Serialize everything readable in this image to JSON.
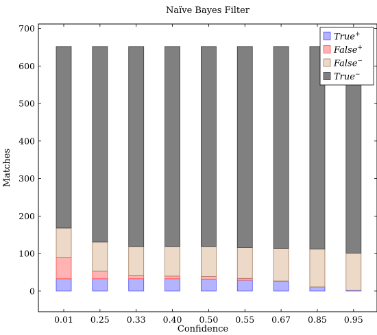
{
  "chart_data": {
    "type": "bar",
    "stacked": true,
    "title": "Naïve Bayes Filter",
    "xlabel": "Confidence",
    "ylabel": "Matches",
    "categories": [
      "0.01",
      "0.25",
      "0.33",
      "0.40",
      "0.50",
      "0.55",
      "0.67",
      "0.85",
      "0.95"
    ],
    "ylim": [
      -55,
      712
    ],
    "yticks": [
      0,
      100,
      200,
      300,
      400,
      500,
      600,
      700
    ],
    "grid": false,
    "legend_position": "top-right",
    "series": [
      {
        "name": "True",
        "name_sup": "+",
        "fill": "#b3b3ff",
        "stroke": "#4d4dff",
        "values": [
          33,
          33,
          33,
          33,
          32,
          29,
          26,
          11,
          2
        ]
      },
      {
        "name": "False",
        "name_sup": "+",
        "fill": "#ffb3b3",
        "stroke": "#ff4d4d",
        "values": [
          57,
          20,
          8,
          7,
          7,
          5,
          1,
          0,
          0
        ]
      },
      {
        "name": "False",
        "name_sup": "−",
        "fill": "#ecd9c8",
        "stroke": "#a47a5a",
        "values": [
          78,
          78,
          78,
          79,
          80,
          82,
          87,
          101,
          99
        ]
      },
      {
        "name": "True",
        "name_sup": "−",
        "fill": "#808080",
        "stroke": "#3a3a3a",
        "values": [
          484,
          521,
          533,
          533,
          533,
          536,
          538,
          540,
          551
        ]
      }
    ]
  }
}
